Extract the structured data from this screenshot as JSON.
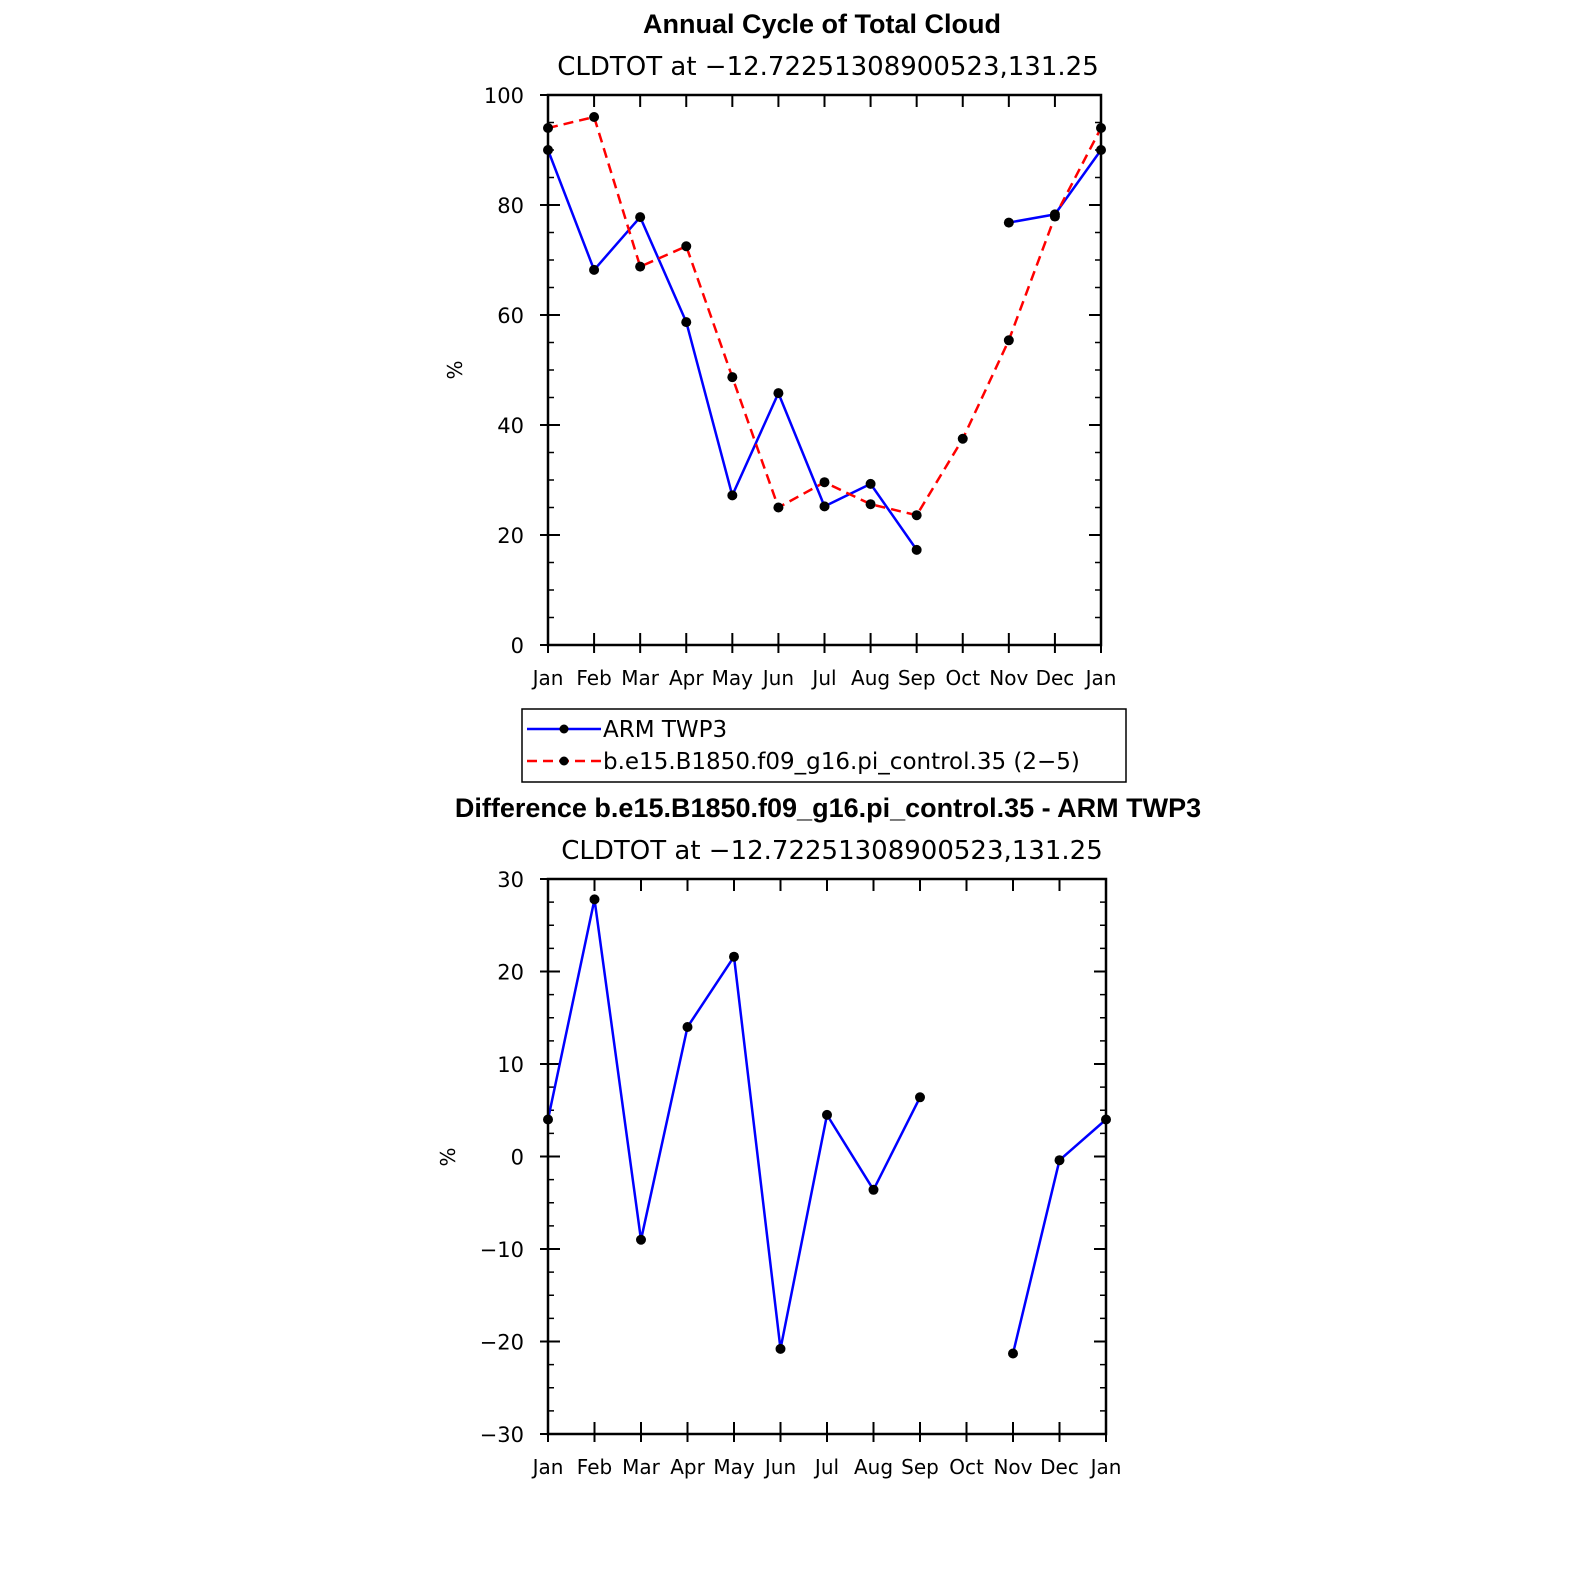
{
  "chart_data": [
    {
      "type": "line",
      "title": "Annual Cycle of Total Cloud",
      "subtitle": "CLDTOT at −12.72251308900523,131.25",
      "xlabel": "",
      "ylabel": "%",
      "ylim": [
        0,
        100
      ],
      "yticks": [
        0,
        20,
        40,
        60,
        80,
        100
      ],
      "categories": [
        "Jan",
        "Feb",
        "Mar",
        "Apr",
        "May",
        "Jun",
        "Jul",
        "Aug",
        "Sep",
        "Oct",
        "Nov",
        "Dec",
        "Jan"
      ],
      "series": [
        {
          "name": "ARM TWP3",
          "color": "#0000ff",
          "dash": "solid",
          "values": [
            90,
            68.2,
            77.8,
            58.7,
            27.2,
            45.8,
            25.2,
            29.3,
            17.3,
            null,
            76.8,
            78.3,
            90
          ]
        },
        {
          "name": "b.e15.B1850.f09_g16.pi_control.35 (2−5)",
          "color": "#ff0000",
          "dash": "dashed",
          "values": [
            94,
            96,
            68.8,
            72.5,
            48.7,
            25,
            29.6,
            25.6,
            23.6,
            37.5,
            55.4,
            77.9,
            94
          ]
        }
      ],
      "legend_position": "below"
    },
    {
      "type": "line",
      "title": "Difference b.e15.B1850.f09_g16.pi_control.35 - ARM TWP3",
      "subtitle": "CLDTOT at −12.72251308900523,131.25",
      "xlabel": "",
      "ylabel": "%",
      "ylim": [
        -30,
        30
      ],
      "yticks": [
        -30,
        -20,
        -10,
        0,
        10,
        20,
        30
      ],
      "ytick_labels": [
        "−30",
        "−20",
        "−10",
        "0",
        "10",
        "20",
        "30"
      ],
      "categories": [
        "Jan",
        "Feb",
        "Mar",
        "Apr",
        "May",
        "Jun",
        "Jul",
        "Aug",
        "Sep",
        "Oct",
        "Nov",
        "Dec",
        "Jan"
      ],
      "series": [
        {
          "name": "Difference",
          "color": "#0000ff",
          "dash": "solid",
          "values": [
            4,
            27.8,
            -9,
            14,
            21.6,
            -20.8,
            4.5,
            -3.6,
            6.4,
            null,
            -21.3,
            -0.4,
            4
          ]
        }
      ]
    }
  ]
}
